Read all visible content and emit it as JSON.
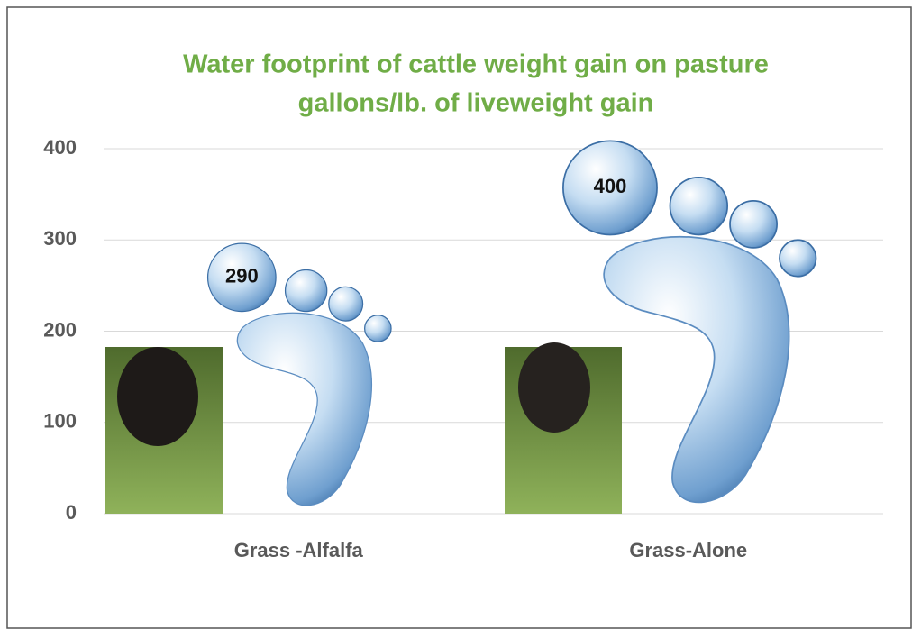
{
  "chart_data": {
    "type": "pictograph",
    "title": "Water footprint of cattle weight gain on pasture",
    "subtitle": "gallons/lb. of liveweight gain",
    "categories": [
      "Grass -Alfalfa",
      "Grass-Alone"
    ],
    "values": [
      290,
      400
    ],
    "color": "#9cc3e6",
    "ylim": [
      0,
      400
    ],
    "yticks": [
      0,
      100,
      200,
      300,
      400
    ],
    "grid": true
  }
}
